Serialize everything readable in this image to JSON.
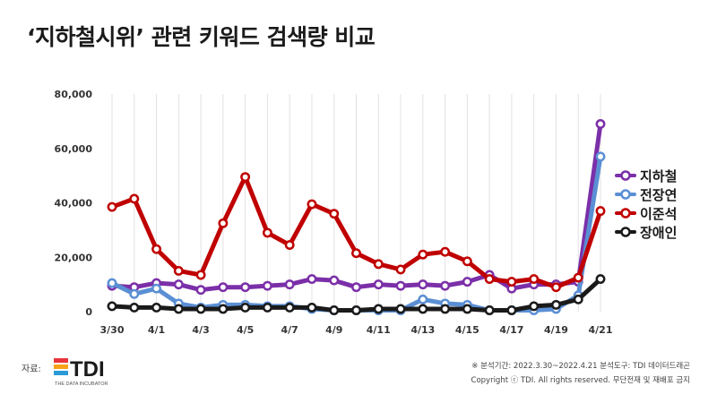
{
  "title": "‘지하철시위’ 관련 키워드 검색량 비교",
  "source_label": "자료:",
  "logo": {
    "name": "TDI",
    "tagline": "THE DATA INCUBATOR"
  },
  "footer": {
    "period_note": "※ 분석기간: 2022.3.30~2022.4.21   분석도구: TDI 데이터드래곤",
    "copyright": "Copyright ⓒ TDI. All rights reserved. 무단전재 및 재배포 금지"
  },
  "chart_data": {
    "type": "line",
    "x": [
      "3/30",
      "3/31",
      "4/1",
      "4/2",
      "4/3",
      "4/4",
      "4/5",
      "4/6",
      "4/7",
      "4/8",
      "4/9",
      "4/10",
      "4/11",
      "4/12",
      "4/13",
      "4/14",
      "4/15",
      "4/16",
      "4/17",
      "4/18",
      "4/19",
      "4/20",
      "4/21"
    ],
    "x_tick_labels": [
      "3/30",
      "4/1",
      "4/3",
      "4/5",
      "4/7",
      "4/9",
      "4/11",
      "4/13",
      "4/15",
      "4/17",
      "4/19",
      "4/21"
    ],
    "ylim": [
      0,
      80000
    ],
    "y_ticks": [
      0,
      20000,
      40000,
      60000,
      80000
    ],
    "y_tick_labels": [
      "0",
      "20,000",
      "40,000",
      "60,000",
      "80,000"
    ],
    "grid": "vertical",
    "legend": "right",
    "series": [
      {
        "name": "지하철",
        "color": "#7b2fa8",
        "values": [
          9500,
          9000,
          10500,
          10000,
          8000,
          9000,
          9000,
          9500,
          10000,
          12000,
          11500,
          9000,
          10000,
          9500,
          10000,
          9500,
          11000,
          13500,
          8500,
          10000,
          10000,
          11000,
          69000
        ]
      },
      {
        "name": "전장연",
        "color": "#5b8fd4",
        "values": [
          10500,
          6500,
          8500,
          3000,
          1500,
          2500,
          2500,
          2000,
          2000,
          1000,
          500,
          500,
          500,
          500,
          4500,
          3000,
          2500,
          500,
          500,
          500,
          1000,
          6000,
          57000
        ]
      },
      {
        "name": "이준석",
        "color": "#c00000",
        "values": [
          38500,
          41500,
          23000,
          15000,
          13500,
          32500,
          49500,
          29000,
          24500,
          39500,
          36000,
          21500,
          17500,
          15500,
          21000,
          22000,
          18500,
          12000,
          11000,
          12000,
          9000,
          12500,
          37000
        ]
      },
      {
        "name": "장애인",
        "color": "#1a1a1a",
        "values": [
          2000,
          1500,
          1500,
          1000,
          1000,
          1000,
          1500,
          1500,
          1500,
          1500,
          500,
          500,
          1000,
          1000,
          1000,
          1000,
          1000,
          500,
          500,
          2000,
          2500,
          4500,
          12000
        ]
      }
    ]
  }
}
